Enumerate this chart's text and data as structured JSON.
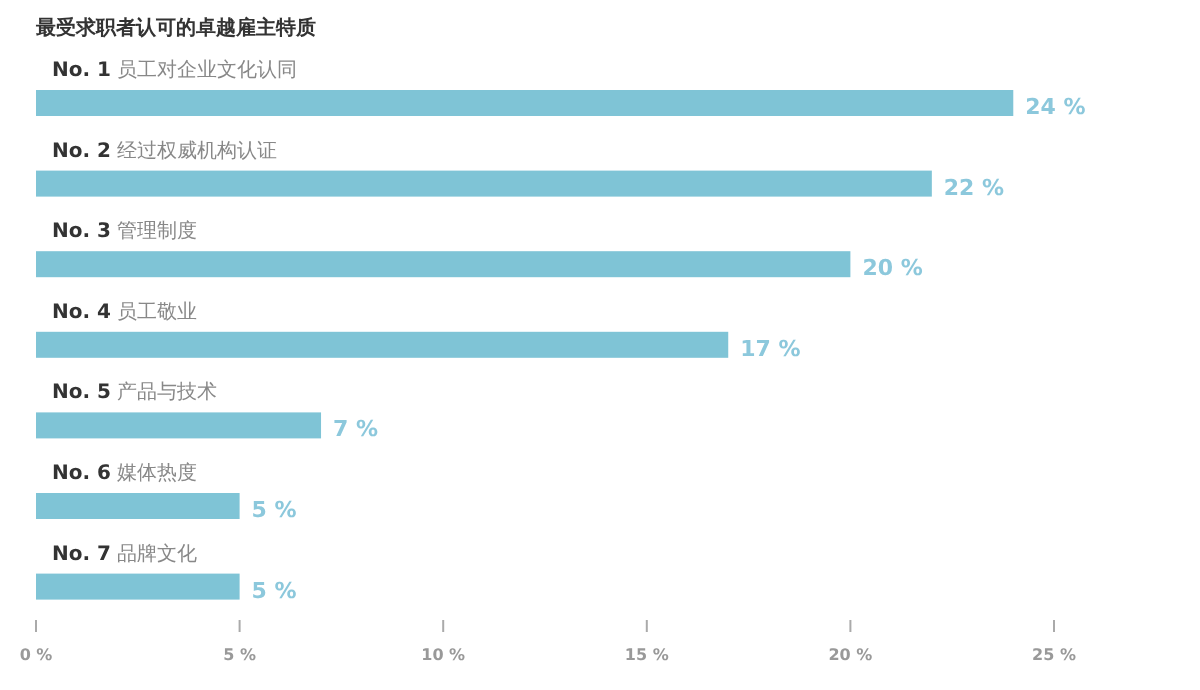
{
  "chart_data": {
    "type": "bar",
    "orientation": "horizontal",
    "title": "最受求职者认可的卓越雇主特质",
    "categories": [
      "**No. 1** 员工对企业文化认同",
      "**No. 2** 经过权威机构认证",
      "**No. 3** 管理制度",
      "**No. 4** 员工敬业",
      "**No. 5** 产品与技术",
      "**No. 6** 媒体热度",
      "**No. 7** 品牌文化"
    ],
    "values": [
      24,
      22,
      20,
      17,
      7,
      5,
      5
    ],
    "value_labels": [
      "24 %",
      "22 %",
      "20 %",
      "17 %",
      "7 %",
      "5 %",
      "5 %"
    ],
    "color": "#7fc4d6",
    "xlim": [
      0,
      25
    ],
    "xticks": [
      {
        "value": 0,
        "label": "0 %"
      },
      {
        "value": 5,
        "label": "5 %"
      },
      {
        "value": 10,
        "label": "10 %"
      },
      {
        "value": 15,
        "label": "15 %"
      },
      {
        "value": 20,
        "label": "20 %"
      },
      {
        "value": 25,
        "label": "25 %"
      }
    ],
    "grid": false
  }
}
